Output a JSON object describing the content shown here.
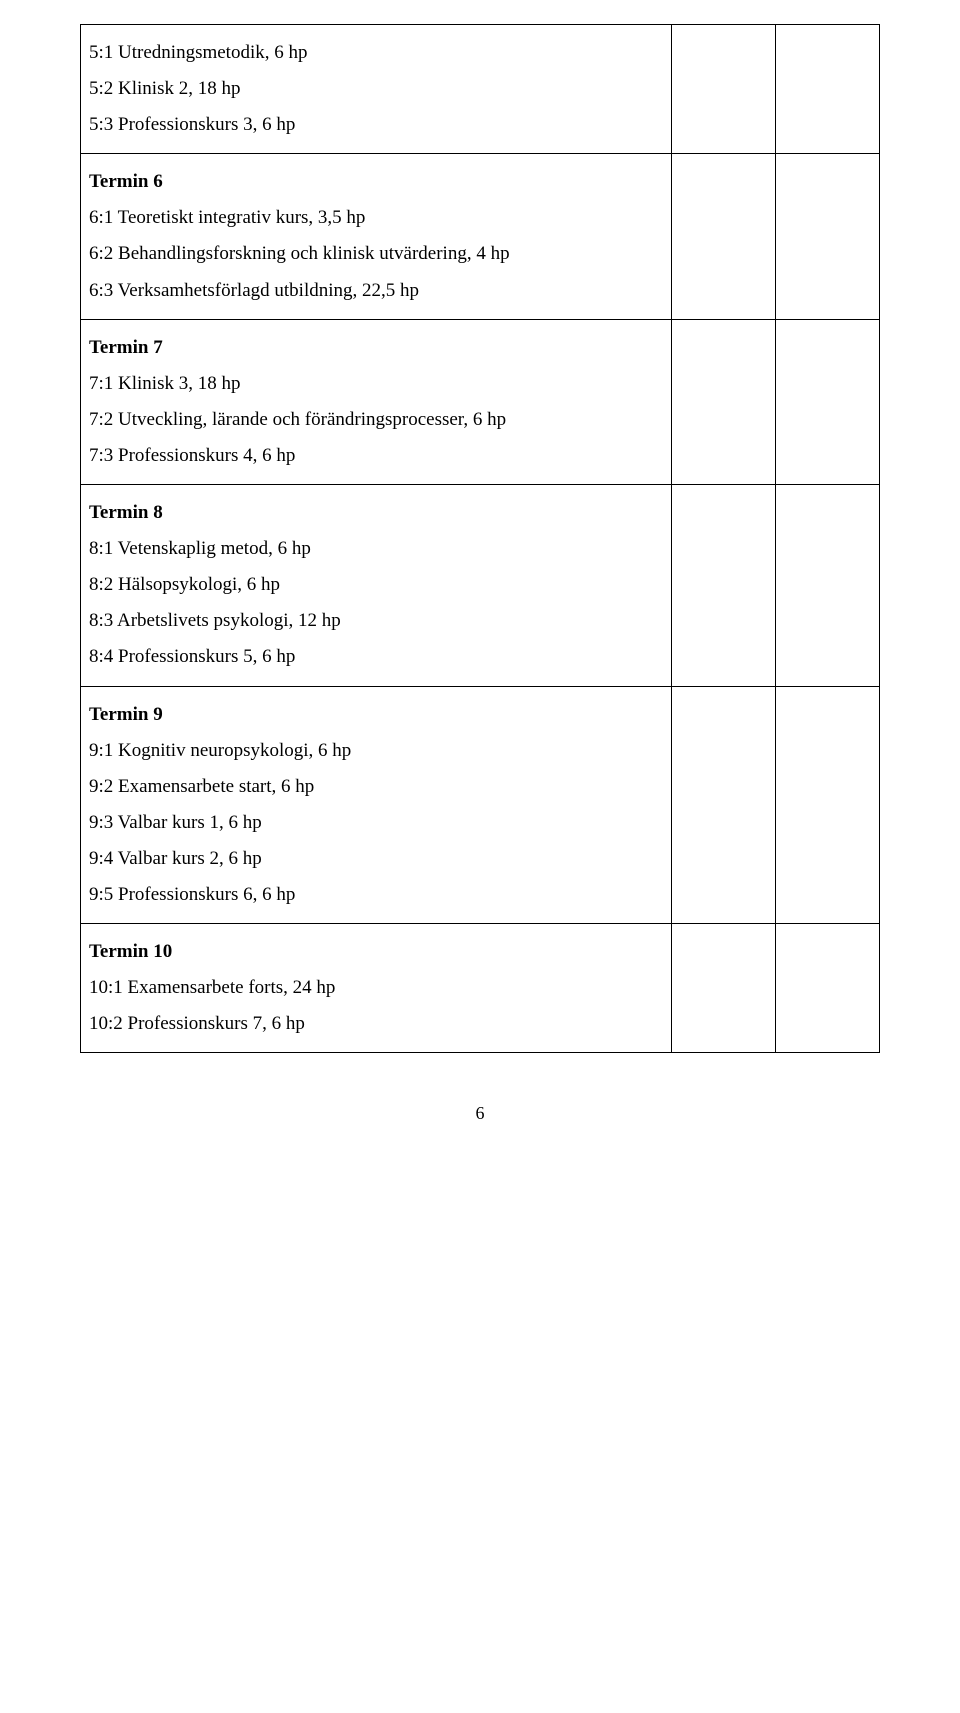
{
  "rows": [
    {
      "type": "multi",
      "lines": [
        "5:1 Utredningsmetodik, 6 hp",
        "5:2 Klinisk 2, 18 hp",
        "5:3 Professionskurs 3, 6 hp"
      ]
    },
    {
      "type": "multi",
      "lines": [
        "Termin 6",
        "6:1 Teoretiskt integrativ kurs, 3,5 hp",
        "6:2 Behandlingsforskning och klinisk utvärdering, 4 hp",
        "6:3 Verksamhetsförlagd utbildning, 22,5 hp"
      ],
      "boldFirst": true
    },
    {
      "type": "multi",
      "lines": [
        "Termin 7",
        "7:1 Klinisk 3, 18 hp",
        "7:2 Utveckling, lärande och förändringsprocesser, 6 hp",
        "7:3 Professionskurs 4, 6 hp"
      ],
      "boldFirst": true
    },
    {
      "type": "multi",
      "lines": [
        "Termin 8",
        "8:1 Vetenskaplig metod, 6 hp",
        "8:2 Hälsopsykologi, 6 hp",
        "8:3 Arbetslivets psykologi, 12 hp",
        "8:4 Professionskurs 5, 6 hp"
      ],
      "boldFirst": true
    },
    {
      "type": "multi",
      "lines": [
        "Termin 9",
        "9:1 Kognitiv neuropsykologi, 6 hp",
        "9:2 Examensarbete start, 6 hp",
        "9:3 Valbar kurs 1, 6 hp",
        "9:4 Valbar kurs 2, 6 hp",
        "9:5 Professionskurs 6, 6 hp"
      ],
      "boldFirst": true
    },
    {
      "type": "multi",
      "lines": [
        "Termin 10",
        "10:1 Examensarbete forts, 24 hp",
        "10:2 Professionskurs 7, 6 hp"
      ],
      "boldFirst": true
    }
  ],
  "pageNumber": "6"
}
